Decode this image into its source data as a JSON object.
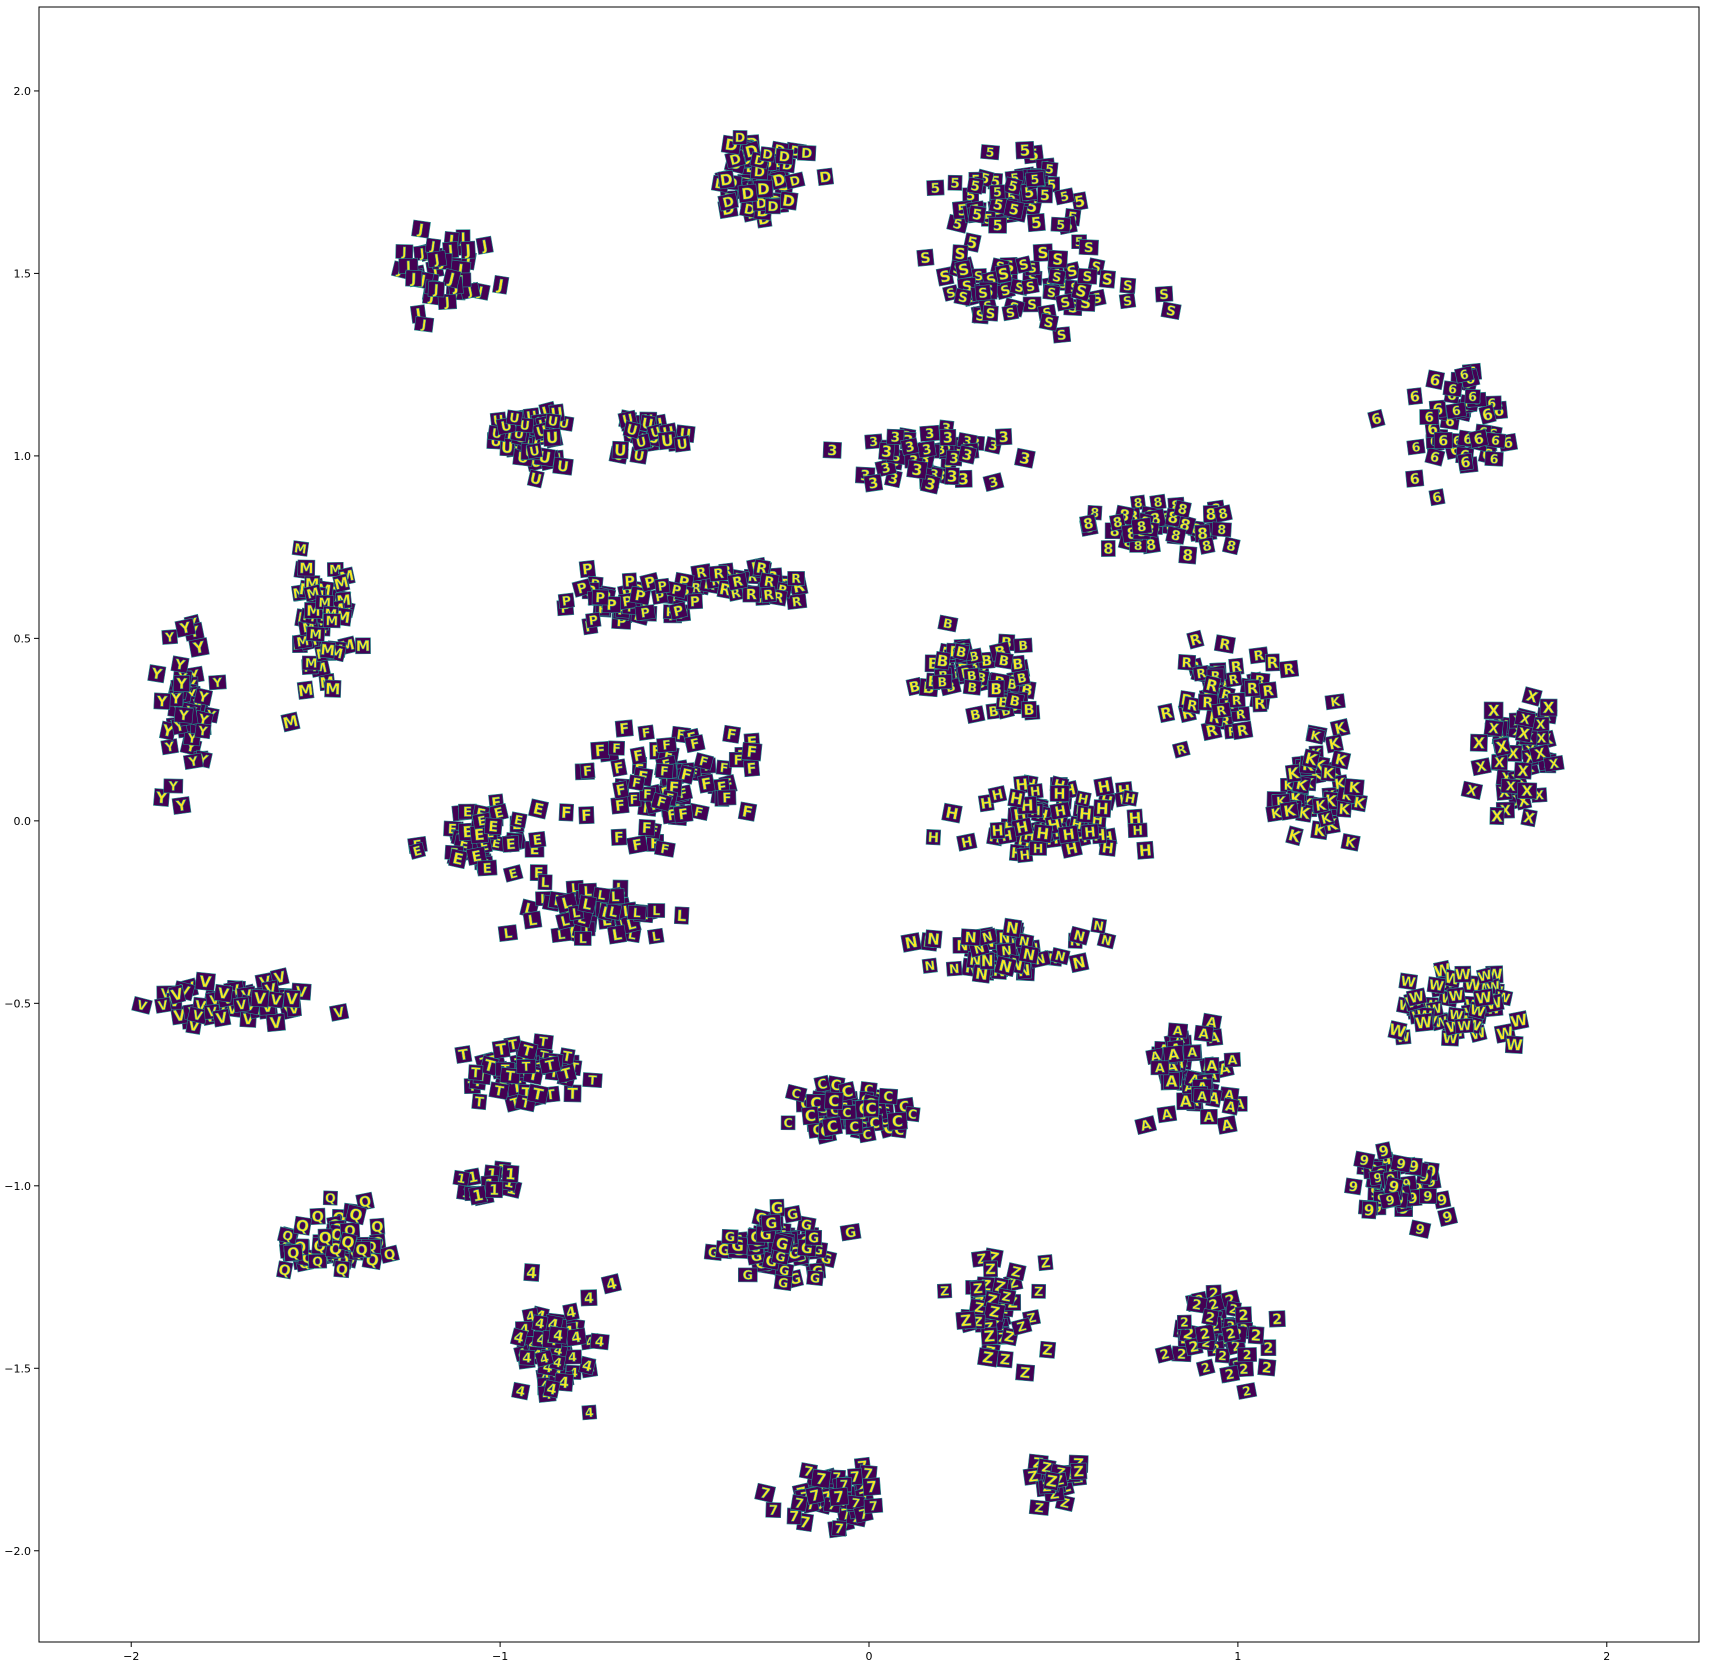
{
  "chart_data": {
    "type": "scatter",
    "title": "",
    "xlabel": "",
    "ylabel": "",
    "xlim": [
      -2.25,
      2.25
    ],
    "ylim": [
      -2.25,
      2.23
    ],
    "xticks": [
      -2,
      -1,
      0,
      1,
      2
    ],
    "xtick_labels": [
      "−2",
      "−1",
      "0",
      "1",
      "2"
    ],
    "yticks": [
      -2.0,
      -1.5,
      -1.0,
      -0.5,
      0.0,
      0.5,
      1.0,
      1.5,
      2.0
    ],
    "ytick_labels": [
      "−2.0",
      "−1.5",
      "−1.0",
      "−0.5",
      "0.0",
      "0.5",
      "1.0",
      "1.5",
      "2.0"
    ],
    "grid": false,
    "marker": "character image thumbnails (yellow glyph on dark purple)",
    "colors": {
      "background": "#440154",
      "glyph": "#fde725",
      "mid": "#21918c"
    },
    "clusters": [
      {
        "label": "D",
        "center": [
          -0.3,
          1.75
        ],
        "spread": [
          0.22,
          0.22
        ],
        "count": 60
      },
      {
        "label": "5",
        "center": [
          0.4,
          1.72
        ],
        "spread": [
          0.28,
          0.2
        ],
        "count": 55
      },
      {
        "label": "S",
        "center": [
          0.45,
          1.45
        ],
        "spread": [
          0.55,
          0.18
        ],
        "count": 60
      },
      {
        "label": "J",
        "center": [
          -1.15,
          1.5
        ],
        "spread": [
          0.25,
          0.2
        ],
        "count": 40
      },
      {
        "label": "6",
        "center": [
          1.6,
          1.1
        ],
        "spread": [
          0.25,
          0.25
        ],
        "count": 50
      },
      {
        "label": "U",
        "center": [
          -0.9,
          1.05
        ],
        "spread": [
          0.18,
          0.15
        ],
        "count": 40
      },
      {
        "label": "U",
        "center": [
          -0.6,
          1.05
        ],
        "spread": [
          0.18,
          0.12
        ],
        "count": 25
      },
      {
        "label": "3",
        "center": [
          0.15,
          1.0
        ],
        "spread": [
          0.32,
          0.12
        ],
        "count": 45
      },
      {
        "label": "8",
        "center": [
          0.8,
          0.8
        ],
        "spread": [
          0.35,
          0.12
        ],
        "count": 45
      },
      {
        "label": "M",
        "center": [
          -1.48,
          0.55
        ],
        "spread": [
          0.12,
          0.35
        ],
        "count": 55
      },
      {
        "label": "Y",
        "center": [
          -1.85,
          0.3
        ],
        "spread": [
          0.13,
          0.35
        ],
        "count": 50
      },
      {
        "label": "R",
        "center": [
          -0.3,
          0.65
        ],
        "spread": [
          0.28,
          0.1
        ],
        "count": 30
      },
      {
        "label": "P",
        "center": [
          -0.65,
          0.6
        ],
        "spread": [
          0.3,
          0.1
        ],
        "count": 45
      },
      {
        "label": "B",
        "center": [
          0.3,
          0.4
        ],
        "spread": [
          0.28,
          0.18
        ],
        "count": 55
      },
      {
        "label": "R",
        "center": [
          0.95,
          0.35
        ],
        "spread": [
          0.28,
          0.2
        ],
        "count": 45
      },
      {
        "label": "K",
        "center": [
          1.2,
          0.1
        ],
        "spread": [
          0.18,
          0.3
        ],
        "count": 50
      },
      {
        "label": "X",
        "center": [
          1.75,
          0.2
        ],
        "spread": [
          0.2,
          0.3
        ],
        "count": 50
      },
      {
        "label": "F",
        "center": [
          -0.55,
          0.1
        ],
        "spread": [
          0.35,
          0.25
        ],
        "count": 80
      },
      {
        "label": "E",
        "center": [
          -1.05,
          -0.05
        ],
        "spread": [
          0.25,
          0.15
        ],
        "count": 45
      },
      {
        "label": "H",
        "center": [
          0.5,
          0.0
        ],
        "spread": [
          0.4,
          0.18
        ],
        "count": 70
      },
      {
        "label": "L",
        "center": [
          -0.75,
          -0.25
        ],
        "spread": [
          0.35,
          0.12
        ],
        "count": 50
      },
      {
        "label": "N",
        "center": [
          0.4,
          -0.35
        ],
        "spread": [
          0.35,
          0.12
        ],
        "count": 55
      },
      {
        "label": "V",
        "center": [
          -1.7,
          -0.5
        ],
        "spread": [
          0.3,
          0.1
        ],
        "count": 55
      },
      {
        "label": "W",
        "center": [
          1.6,
          -0.5
        ],
        "spread": [
          0.25,
          0.18
        ],
        "count": 55
      },
      {
        "label": "T",
        "center": [
          -0.95,
          -0.7
        ],
        "spread": [
          0.25,
          0.15
        ],
        "count": 50
      },
      {
        "label": "C",
        "center": [
          -0.05,
          -0.8
        ],
        "spread": [
          0.22,
          0.12
        ],
        "count": 75
      },
      {
        "label": "A",
        "center": [
          0.9,
          -0.7
        ],
        "spread": [
          0.25,
          0.22
        ],
        "count": 55
      },
      {
        "label": "9",
        "center": [
          1.45,
          -1.0
        ],
        "spread": [
          0.2,
          0.15
        ],
        "count": 45
      },
      {
        "label": "Q",
        "center": [
          -1.45,
          -1.15
        ],
        "spread": [
          0.25,
          0.15
        ],
        "count": 55
      },
      {
        "label": "G",
        "center": [
          -0.25,
          -1.15
        ],
        "spread": [
          0.25,
          0.15
        ],
        "count": 75
      },
      {
        "label": "Z",
        "center": [
          0.35,
          -1.35
        ],
        "spread": [
          0.18,
          0.25
        ],
        "count": 45
      },
      {
        "label": "2",
        "center": [
          0.95,
          -1.4
        ],
        "spread": [
          0.2,
          0.2
        ],
        "count": 50
      },
      {
        "label": "4",
        "center": [
          -0.85,
          -1.45
        ],
        "spread": [
          0.2,
          0.25
        ],
        "count": 55
      },
      {
        "label": "7",
        "center": [
          -0.1,
          -1.85
        ],
        "spread": [
          0.22,
          0.12
        ],
        "count": 50
      },
      {
        "label": "Z",
        "center": [
          0.5,
          -1.8
        ],
        "spread": [
          0.12,
          0.1
        ],
        "count": 25
      },
      {
        "label": "1",
        "center": [
          -1.05,
          -1.0
        ],
        "spread": [
          0.15,
          0.08
        ],
        "count": 15
      }
    ]
  }
}
